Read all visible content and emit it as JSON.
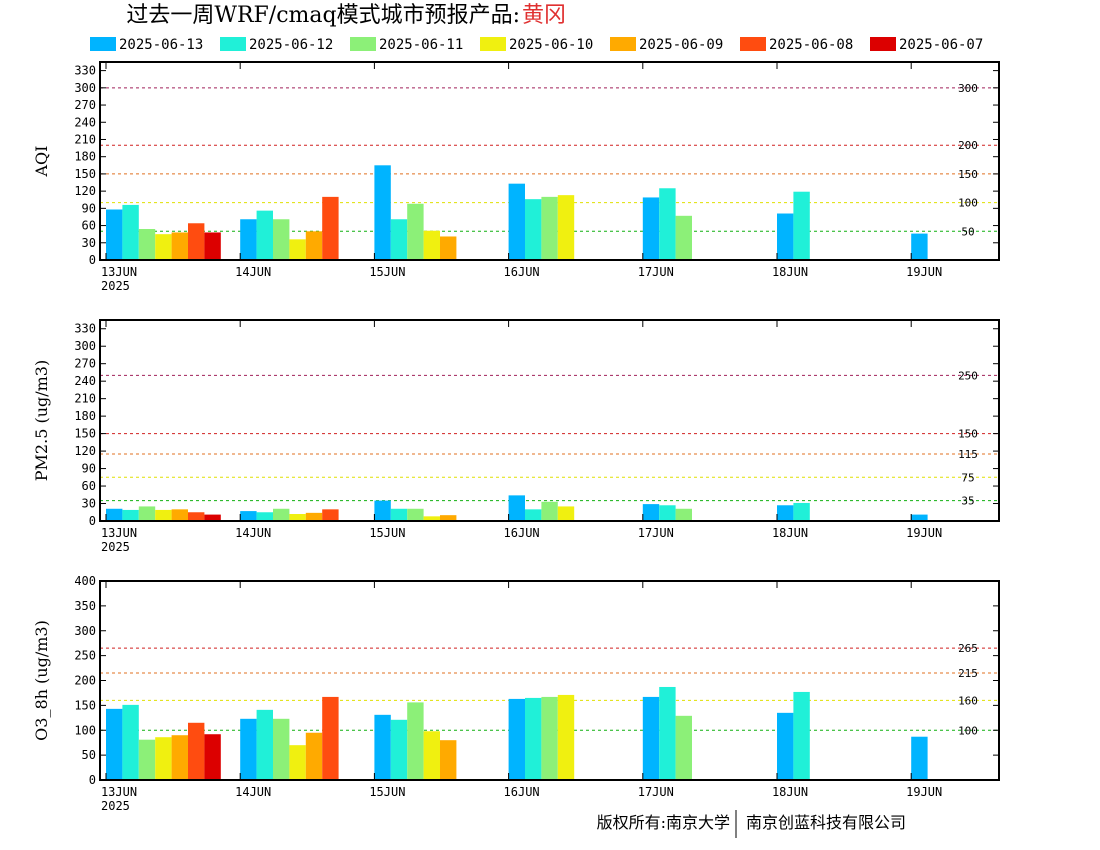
{
  "header": {
    "title": "过去一周WRF/cmaq模式城市预报产品:",
    "city": "黄冈"
  },
  "legend": [
    {
      "label": "2025-06-13",
      "color": "#00b4ff"
    },
    {
      "label": "2025-06-12",
      "color": "#20f0d8"
    },
    {
      "label": "2025-06-11",
      "color": "#8cf078"
    },
    {
      "label": "2025-06-10",
      "color": "#f0f010"
    },
    {
      "label": "2025-06-09",
      "color": "#ffaa00"
    },
    {
      "label": "2025-06-08",
      "color": "#ff4c10"
    },
    {
      "label": "2025-06-07",
      "color": "#dc0000"
    }
  ],
  "footer": {
    "left": "版权所有:南京大学",
    "right": "南京创蓝科技有限公司"
  },
  "chart_data": [
    {
      "type": "bar",
      "ylabel": "AQI",
      "ylim": [
        0,
        345
      ],
      "yticks": [
        0,
        30,
        60,
        90,
        120,
        150,
        180,
        210,
        240,
        270,
        300,
        330
      ],
      "xticks": [
        "13JUN",
        "14JUN",
        "15JUN",
        "16JUN",
        "17JUN",
        "18JUN",
        "19JUN"
      ],
      "year_label": "2025",
      "thresholds": [
        {
          "value": 300,
          "label": "300",
          "color": "#a0205a"
        },
        {
          "value": 200,
          "label": "200",
          "color": "#d02020"
        },
        {
          "value": 150,
          "label": "150",
          "color": "#e07020"
        },
        {
          "value": 100,
          "label": "100",
          "color": "#e0e000"
        },
        {
          "value": 50,
          "label": "50",
          "color": "#10b010"
        }
      ],
      "series": [
        {
          "name": "2025-06-13",
          "values": [
            88,
            71,
            165,
            133,
            109,
            81,
            46
          ]
        },
        {
          "name": "2025-06-12",
          "values": [
            96,
            86,
            71,
            106,
            125,
            119,
            null
          ]
        },
        {
          "name": "2025-06-11",
          "values": [
            54,
            71,
            98,
            110,
            77,
            null,
            null
          ]
        },
        {
          "name": "2025-06-10",
          "values": [
            45,
            36,
            51,
            113,
            null,
            null,
            null
          ]
        },
        {
          "name": "2025-06-09",
          "values": [
            48,
            50,
            41,
            null,
            null,
            null,
            null
          ]
        },
        {
          "name": "2025-06-08",
          "values": [
            64,
            110,
            null,
            null,
            null,
            null,
            null
          ]
        },
        {
          "name": "2025-06-07",
          "values": [
            48,
            null,
            null,
            null,
            null,
            null,
            null
          ]
        }
      ]
    },
    {
      "type": "bar",
      "ylabel": "PM2.5 (ug/m3)",
      "ylim": [
        0,
        345
      ],
      "yticks": [
        0,
        30,
        60,
        90,
        120,
        150,
        180,
        210,
        240,
        270,
        300,
        330
      ],
      "xticks": [
        "13JUN",
        "14JUN",
        "15JUN",
        "16JUN",
        "17JUN",
        "18JUN",
        "19JUN"
      ],
      "year_label": "2025",
      "thresholds": [
        {
          "value": 250,
          "label": "250",
          "color": "#a0205a"
        },
        {
          "value": 150,
          "label": "150",
          "color": "#d02020"
        },
        {
          "value": 115,
          "label": "115",
          "color": "#e07020"
        },
        {
          "value": 75,
          "label": "75",
          "color": "#e0e000"
        },
        {
          "value": 35,
          "label": "35",
          "color": "#10b010"
        }
      ],
      "series": [
        {
          "name": "2025-06-13",
          "values": [
            21,
            17,
            35,
            44,
            29,
            27,
            11
          ]
        },
        {
          "name": "2025-06-12",
          "values": [
            19,
            15,
            21,
            20,
            27,
            31,
            null
          ]
        },
        {
          "name": "2025-06-11",
          "values": [
            25,
            21,
            21,
            33,
            21,
            null,
            null
          ]
        },
        {
          "name": "2025-06-10",
          "values": [
            19,
            12,
            8,
            25,
            null,
            null,
            null
          ]
        },
        {
          "name": "2025-06-09",
          "values": [
            20,
            14,
            10,
            null,
            null,
            null,
            null
          ]
        },
        {
          "name": "2025-06-08",
          "values": [
            15,
            20,
            null,
            null,
            null,
            null,
            null
          ]
        },
        {
          "name": "2025-06-07",
          "values": [
            11,
            null,
            null,
            null,
            null,
            null,
            null
          ]
        }
      ]
    },
    {
      "type": "bar",
      "ylabel": "O3_8h (ug/m3)",
      "ylim": [
        0,
        400
      ],
      "yticks": [
        0,
        50,
        100,
        150,
        200,
        250,
        300,
        350,
        400
      ],
      "xticks": [
        "13JUN",
        "14JUN",
        "15JUN",
        "16JUN",
        "17JUN",
        "18JUN",
        "19JUN"
      ],
      "year_label": "2025",
      "thresholds": [
        {
          "value": 265,
          "label": "265",
          "color": "#d02020"
        },
        {
          "value": 215,
          "label": "215",
          "color": "#e07020"
        },
        {
          "value": 160,
          "label": "160",
          "color": "#e0e000"
        },
        {
          "value": 100,
          "label": "100",
          "color": "#10b010"
        }
      ],
      "series": [
        {
          "name": "2025-06-13",
          "values": [
            143,
            123,
            131,
            163,
            167,
            135,
            87
          ]
        },
        {
          "name": "2025-06-12",
          "values": [
            151,
            141,
            121,
            165,
            187,
            177,
            null
          ]
        },
        {
          "name": "2025-06-11",
          "values": [
            81,
            123,
            156,
            167,
            129,
            null,
            null
          ]
        },
        {
          "name": "2025-06-10",
          "values": [
            86,
            70,
            98,
            171,
            null,
            null,
            null
          ]
        },
        {
          "name": "2025-06-09",
          "values": [
            90,
            95,
            80,
            null,
            null,
            null,
            null
          ]
        },
        {
          "name": "2025-06-08",
          "values": [
            115,
            167,
            null,
            null,
            null,
            null,
            null
          ]
        },
        {
          "name": "2025-06-07",
          "values": [
            92,
            null,
            null,
            null,
            null,
            null,
            null
          ]
        }
      ]
    }
  ]
}
